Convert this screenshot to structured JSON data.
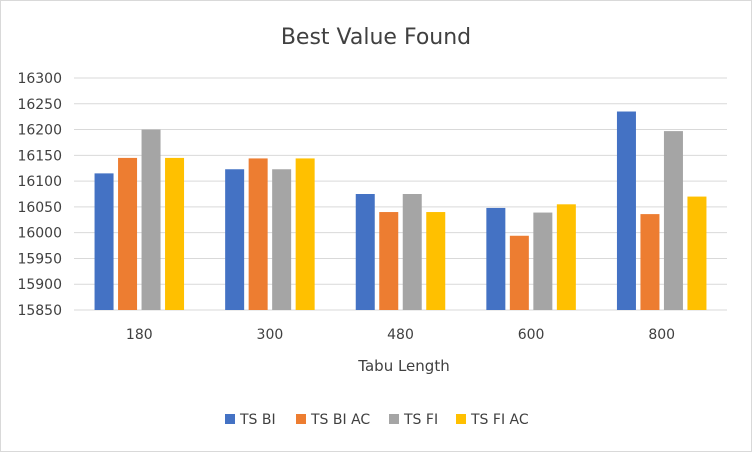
{
  "chart_data": {
    "type": "bar",
    "title": "Best Value Found",
    "xlabel": "Tabu Length",
    "ylabel": "",
    "categories": [
      "180",
      "300",
      "480",
      "600",
      "800"
    ],
    "ylim": [
      15850,
      16300
    ],
    "yticks": [
      "16300",
      "16250",
      "16200",
      "16150",
      "16100",
      "16050",
      "16000",
      "15950",
      "15900",
      "15850"
    ],
    "grid": "on",
    "legend_position": "bottom",
    "series": [
      {
        "name": "TS BI",
        "color": "#4472C4",
        "values": [
          16115,
          16123,
          16075,
          16048,
          16235
        ]
      },
      {
        "name": "TS BI AC",
        "color": "#ED7D31",
        "values": [
          16145,
          16144,
          16040,
          15994,
          16036
        ]
      },
      {
        "name": "TS FI",
        "color": "#A5A5A5",
        "values": [
          16200,
          16123,
          16075,
          16039,
          16197
        ]
      },
      {
        "name": "TS FI AC",
        "color": "#FFC000",
        "values": [
          16145,
          16144,
          16040,
          16055,
          16070
        ]
      }
    ]
  }
}
